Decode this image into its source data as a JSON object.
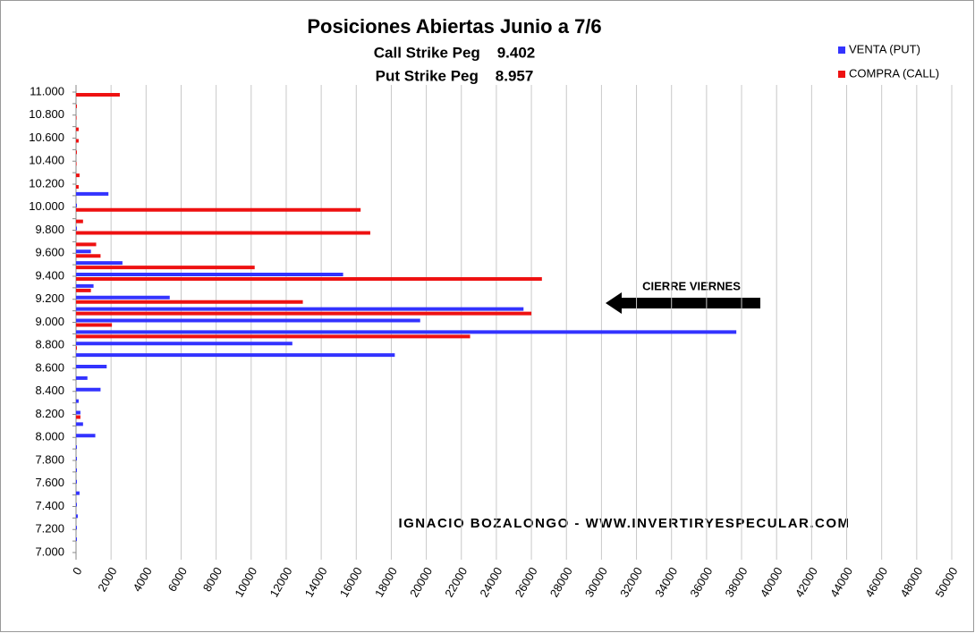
{
  "chart_data": {
    "type": "hbar",
    "title": "Posiciones Abiertas Junio a 7/6",
    "subtitle_lines": [
      "Call Strike Peg    9.402",
      "Put Strike Peg    8.957"
    ],
    "annotation": "CIERRE VIERNES",
    "watermark": "IGNACIO BOZALONGO - WWW.INVERTIRYESPECULAR.COM",
    "categories": [
      "11.000",
      null,
      "10.800",
      null,
      "10.600",
      null,
      "10.400",
      null,
      "10.200",
      null,
      "10.000",
      null,
      "9.800",
      null,
      "9.600",
      null,
      "9.400",
      null,
      "9.200",
      null,
      "9.000",
      null,
      "8.800",
      null,
      "8.600",
      null,
      "8.400",
      null,
      "8.200",
      null,
      "8.000",
      null,
      "7.800",
      null,
      "7.600",
      null,
      "7.400",
      null,
      "7.200",
      null,
      "7.000"
    ],
    "series": [
      {
        "name": "VENTA (PUT)",
        "color": "#3333ff",
        "values": [
          0,
          0,
          0,
          0,
          0,
          0,
          0,
          0,
          0,
          1850,
          50,
          0,
          50,
          0,
          850,
          2650,
          15250,
          1000,
          5350,
          25550,
          19650,
          37700,
          12350,
          18200,
          1750,
          650,
          1400,
          150,
          250,
          400,
          1100,
          50,
          50,
          50,
          50,
          200,
          50,
          100,
          50,
          50,
          0
        ]
      },
      {
        "name": "COMPRA (CALL)",
        "color": "#ee1111",
        "values": [
          2500,
          50,
          30,
          150,
          150,
          50,
          30,
          200,
          150,
          0,
          16250,
          400,
          16800,
          1150,
          1400,
          10200,
          26600,
          850,
          12950,
          26000,
          2050,
          22500,
          50,
          0,
          0,
          0,
          0,
          0,
          250,
          0,
          0,
          0,
          0,
          0,
          0,
          0,
          0,
          0,
          0,
          0,
          0
        ]
      }
    ],
    "xlim": [
      0,
      50000
    ],
    "xticks": [
      0,
      2000,
      4000,
      6000,
      8000,
      10000,
      12000,
      14000,
      16000,
      18000,
      20000,
      22000,
      24000,
      26000,
      28000,
      30000,
      32000,
      34000,
      36000,
      38000,
      40000,
      42000,
      44000,
      46000,
      48000,
      50000
    ],
    "grid": true,
    "legend": "top-right"
  }
}
